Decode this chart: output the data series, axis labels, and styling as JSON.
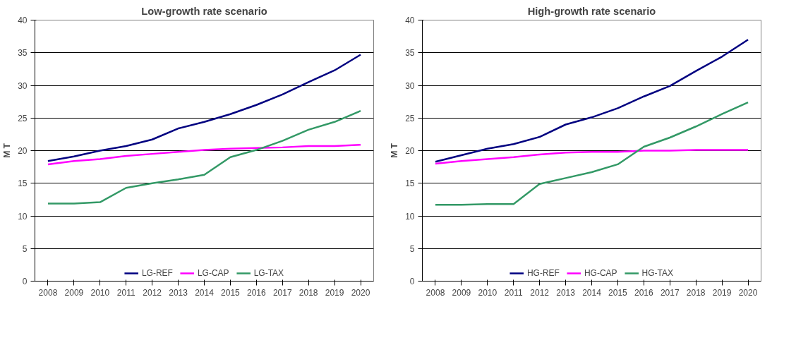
{
  "chart_data": [
    {
      "type": "line",
      "title": "Low-growth rate scenario",
      "ylabel": "M T",
      "categories": [
        "2008",
        "2009",
        "2010",
        "2011",
        "2012",
        "2013",
        "2014",
        "2015",
        "2016",
        "2017",
        "2018",
        "2019",
        "2020"
      ],
      "ylim": [
        0,
        40
      ],
      "yticks": [
        0,
        5,
        10,
        15,
        20,
        25,
        30,
        35,
        40
      ],
      "grid": "y",
      "legend": "bottom",
      "marker": "none",
      "line_style": "solid",
      "series": [
        {
          "name": "LG-REF",
          "color": "#000080",
          "values": [
            18.4,
            19.1,
            20.0,
            20.7,
            21.7,
            23.4,
            24.4,
            25.6,
            27.0,
            28.6,
            30.5,
            32.3,
            34.7
          ]
        },
        {
          "name": "LG-CAP",
          "color": "#ff00ff",
          "values": [
            17.9,
            18.4,
            18.7,
            19.2,
            19.5,
            19.8,
            20.1,
            20.3,
            20.4,
            20.5,
            20.7,
            20.7,
            20.9
          ]
        },
        {
          "name": "LG-TAX",
          "color": "#339966",
          "values": [
            11.9,
            11.9,
            12.1,
            14.3,
            15.0,
            15.6,
            16.3,
            19.0,
            20.1,
            21.5,
            23.2,
            24.4,
            26.1
          ]
        }
      ]
    },
    {
      "type": "line",
      "title": "High-growth rate scenario",
      "ylabel": "M T",
      "categories": [
        "2008",
        "2009",
        "2010",
        "2011",
        "2012",
        "2013",
        "2014",
        "2015",
        "2016",
        "2017",
        "2018",
        "2019",
        "2020"
      ],
      "ylim": [
        0,
        40
      ],
      "yticks": [
        0,
        5,
        10,
        15,
        20,
        25,
        30,
        35,
        40
      ],
      "grid": "y",
      "legend": "bottom",
      "marker": "none",
      "line_style": "solid",
      "series": [
        {
          "name": "HG-REF",
          "color": "#000080",
          "values": [
            18.3,
            19.3,
            20.3,
            21.0,
            22.1,
            24.0,
            25.1,
            26.5,
            28.3,
            29.9,
            32.2,
            34.4,
            37.0
          ]
        },
        {
          "name": "HG-CAP",
          "color": "#ff00ff",
          "values": [
            18.0,
            18.4,
            18.7,
            19.0,
            19.4,
            19.7,
            19.8,
            19.8,
            20.0,
            20.0,
            20.1,
            20.1,
            20.1
          ]
        },
        {
          "name": "HG-TAX",
          "color": "#339966",
          "values": [
            11.7,
            11.7,
            11.8,
            11.8,
            14.9,
            15.8,
            16.7,
            17.9,
            20.6,
            22.0,
            23.7,
            25.6,
            27.4
          ]
        }
      ]
    }
  ]
}
